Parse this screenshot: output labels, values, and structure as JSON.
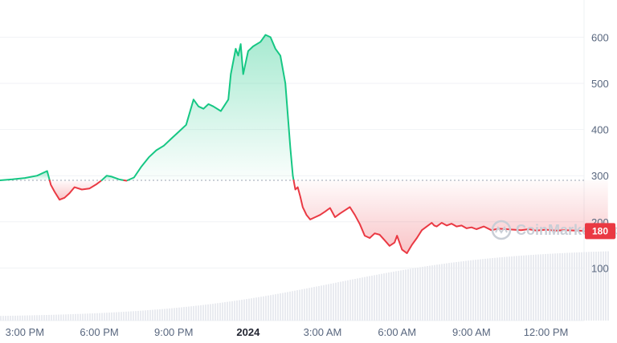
{
  "chart_data": {
    "type": "line",
    "baseline": 290,
    "ylim": [
      0,
      680
    ],
    "yticks": [
      100,
      200,
      300,
      400,
      500,
      600
    ],
    "xlim": [
      14.0,
      38.8
    ],
    "xticks": [
      {
        "x": 15,
        "label": "3:00 PM",
        "bold": false
      },
      {
        "x": 18,
        "label": "6:00 PM",
        "bold": false
      },
      {
        "x": 21,
        "label": "9:00 PM",
        "bold": false
      },
      {
        "x": 24,
        "label": "2024",
        "bold": true
      },
      {
        "x": 27,
        "label": "3:00 AM",
        "bold": false
      },
      {
        "x": 30,
        "label": "6:00 AM",
        "bold": false
      },
      {
        "x": 33,
        "label": "9:00 AM",
        "bold": false
      },
      {
        "x": 36,
        "label": "12:00 PM",
        "bold": false
      }
    ],
    "last_value_label": "180",
    "series": [
      {
        "x": [
          14.0,
          14.5,
          15.0,
          15.5,
          15.9,
          16.05,
          16.2,
          16.4,
          16.6,
          16.8,
          17.0,
          17.3,
          17.6,
          17.9,
          18.1,
          18.3,
          18.5,
          18.8,
          19.1,
          19.4,
          19.7,
          20.0,
          20.3,
          20.6,
          20.9,
          21.2,
          21.5,
          21.8,
          22.0,
          22.2,
          22.4,
          22.6,
          22.9,
          23.2,
          23.3,
          23.5,
          23.6,
          23.7,
          23.8,
          24.0,
          24.2,
          24.5,
          24.7,
          24.9,
          25.1,
          25.3,
          25.5,
          25.7,
          25.8,
          25.9,
          26.0,
          26.1,
          26.2,
          26.35,
          26.5,
          26.7,
          26.9,
          27.1,
          27.3,
          27.5,
          27.7,
          27.9,
          28.1,
          28.3,
          28.5,
          28.7,
          28.9,
          29.1,
          29.3,
          29.5,
          29.7,
          29.9,
          30.0,
          30.2,
          30.4,
          30.6,
          30.8,
          31.0,
          31.2,
          31.4,
          31.5,
          31.6,
          31.8,
          32.0,
          32.2,
          32.4,
          32.6,
          32.8,
          33.0,
          33.2,
          33.5,
          33.8,
          34.1,
          34.4,
          34.7,
          35.0,
          35.3,
          35.6,
          36.0,
          36.4,
          36.8,
          37.2,
          37.6,
          38.0,
          38.3,
          38.5
        ],
        "values": [
          290,
          292,
          295,
          300,
          310,
          280,
          265,
          248,
          252,
          262,
          275,
          270,
          272,
          282,
          290,
          300,
          298,
          292,
          289,
          296,
          320,
          340,
          355,
          365,
          380,
          395,
          410,
          465,
          450,
          445,
          455,
          450,
          440,
          465,
          520,
          575,
          560,
          585,
          520,
          570,
          580,
          590,
          605,
          600,
          575,
          560,
          500,
          360,
          300,
          270,
          275,
          255,
          232,
          215,
          205,
          210,
          215,
          222,
          230,
          210,
          218,
          225,
          232,
          215,
          195,
          170,
          165,
          175,
          172,
          160,
          148,
          155,
          170,
          140,
          132,
          150,
          165,
          182,
          190,
          198,
          192,
          190,
          198,
          192,
          196,
          190,
          192,
          186,
          188,
          184,
          190,
          182,
          185,
          184,
          183,
          182,
          184,
          181,
          183,
          181,
          182,
          181,
          180,
          181,
          180,
          180
        ]
      }
    ],
    "volume": {
      "x_start": 14.0,
      "x_end": 38.5,
      "min": 4,
      "max": 90
    },
    "colors": {
      "up": "#16c784",
      "down": "#ea3943",
      "last_label_bg": "#ea3943"
    },
    "watermark": "CoinMarketCap"
  }
}
